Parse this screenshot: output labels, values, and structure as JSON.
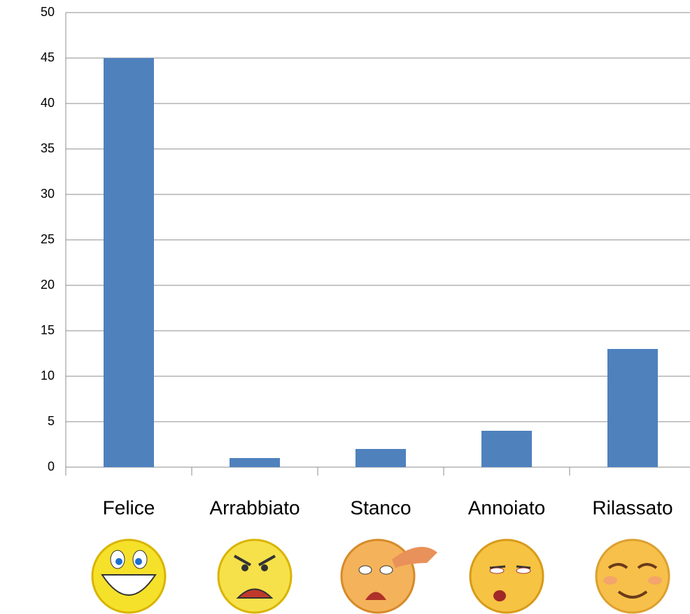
{
  "chart_data": {
    "type": "bar",
    "categories": [
      "Felice",
      "Arrabbiato",
      "Stanco",
      "Annoiato",
      "Rilassato"
    ],
    "values": [
      45,
      1,
      2,
      4,
      13
    ],
    "color": "#4f81bd",
    "ylim": [
      0,
      50
    ],
    "yticks": [
      0,
      5,
      10,
      15,
      20,
      25,
      30,
      35,
      40,
      45,
      50
    ],
    "grid": true
  }
}
